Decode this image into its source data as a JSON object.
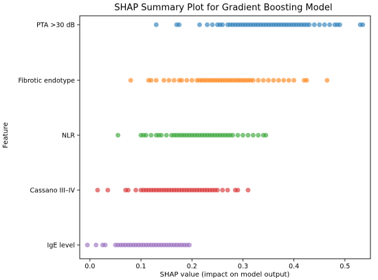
{
  "chart_data": {
    "type": "scatter",
    "title": "SHAP Summary Plot for Gradient Boosting Model",
    "xlabel": "SHAP value (impact on model output)",
    "ylabel": "Feature",
    "xlim": [
      -0.02,
      0.55
    ],
    "xticks": [
      0.0,
      0.1,
      0.2,
      0.3,
      0.4,
      0.5
    ],
    "xtick_labels": [
      "0.0",
      "0.1",
      "0.2",
      "0.3",
      "0.4",
      "0.5"
    ],
    "grid": false,
    "categories": [
      "PTA >30 dB",
      "Fibrotic endotype",
      "NLR",
      "Cassano III–IV",
      "IgE level"
    ],
    "series": [
      {
        "category": "PTA >30 dB",
        "color": "#1f77b4",
        "values": [
          0.13,
          0.17,
          0.175,
          0.215,
          0.23,
          0.24,
          0.25,
          0.255,
          0.26,
          0.27,
          0.275,
          0.28,
          0.285,
          0.29,
          0.295,
          0.3,
          0.305,
          0.31,
          0.315,
          0.32,
          0.325,
          0.33,
          0.335,
          0.34,
          0.345,
          0.35,
          0.355,
          0.36,
          0.365,
          0.37,
          0.375,
          0.38,
          0.385,
          0.39,
          0.395,
          0.4,
          0.405,
          0.41,
          0.415,
          0.42,
          0.425,
          0.43,
          0.44,
          0.45,
          0.46,
          0.47,
          0.48,
          0.485,
          0.49,
          0.53,
          0.535
        ]
      },
      {
        "category": "Fibrotic endotype",
        "color": "#ff7f0e",
        "values": [
          0.08,
          0.115,
          0.12,
          0.13,
          0.145,
          0.155,
          0.165,
          0.175,
          0.18,
          0.19,
          0.2,
          0.21,
          0.215,
          0.22,
          0.225,
          0.23,
          0.235,
          0.24,
          0.245,
          0.25,
          0.255,
          0.26,
          0.265,
          0.27,
          0.275,
          0.28,
          0.285,
          0.29,
          0.295,
          0.3,
          0.305,
          0.31,
          0.315,
          0.32,
          0.33,
          0.34,
          0.35,
          0.36,
          0.37,
          0.38,
          0.39,
          0.4,
          0.42,
          0.425,
          0.465
        ]
      },
      {
        "category": "NLR",
        "color": "#2ca02c",
        "values": [
          0.055,
          0.1,
          0.105,
          0.11,
          0.12,
          0.13,
          0.135,
          0.14,
          0.15,
          0.16,
          0.165,
          0.17,
          0.175,
          0.18,
          0.185,
          0.19,
          0.195,
          0.2,
          0.205,
          0.21,
          0.215,
          0.22,
          0.225,
          0.23,
          0.235,
          0.24,
          0.245,
          0.25,
          0.255,
          0.26,
          0.265,
          0.27,
          0.275,
          0.28,
          0.29,
          0.3,
          0.31,
          0.32,
          0.33,
          0.34,
          0.345
        ]
      },
      {
        "category": "Cassano III–IV",
        "color": "#d62728",
        "values": [
          0.015,
          0.035,
          0.07,
          0.075,
          0.09,
          0.1,
          0.105,
          0.11,
          0.115,
          0.12,
          0.125,
          0.13,
          0.135,
          0.14,
          0.145,
          0.15,
          0.155,
          0.16,
          0.165,
          0.17,
          0.175,
          0.18,
          0.185,
          0.19,
          0.195,
          0.2,
          0.205,
          0.21,
          0.215,
          0.22,
          0.225,
          0.23,
          0.235,
          0.24,
          0.245,
          0.25,
          0.26,
          0.27,
          0.285,
          0.29,
          0.31
        ]
      },
      {
        "category": "IgE level",
        "color": "#9467bd",
        "values": [
          -0.005,
          0.012,
          0.025,
          0.03,
          0.05,
          0.055,
          0.06,
          0.065,
          0.07,
          0.075,
          0.08,
          0.085,
          0.09,
          0.095,
          0.1,
          0.105,
          0.11,
          0.115,
          0.12,
          0.125,
          0.13,
          0.135,
          0.14,
          0.145,
          0.15,
          0.155,
          0.16,
          0.165,
          0.17,
          0.175,
          0.18,
          0.185,
          0.19,
          0.195
        ]
      }
    ]
  }
}
